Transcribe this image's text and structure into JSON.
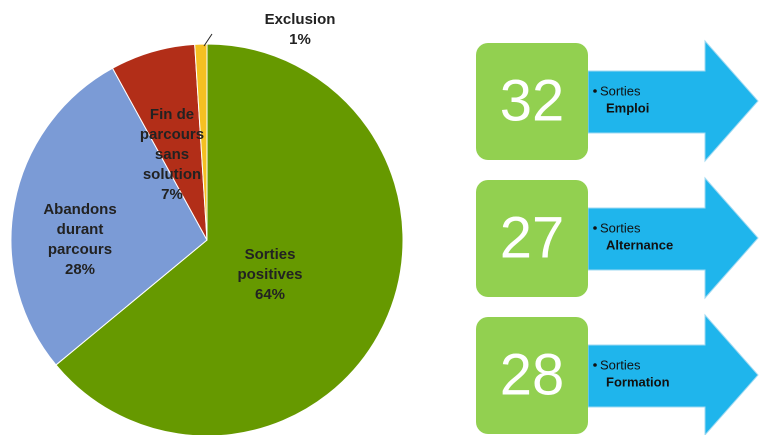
{
  "chart_data": {
    "type": "pie",
    "categories": [
      "Sorties positives",
      "Abandons durant parcours",
      "Fin de parcours sans solution",
      "Exclusion"
    ],
    "values": [
      64,
      28,
      7,
      1
    ],
    "value_labels": [
      "64%",
      "28%",
      "7%",
      "1%"
    ],
    "colors": [
      "#669900",
      "#7b9bd6",
      "#b22e18",
      "#f5c022"
    ]
  },
  "counters": [
    {
      "value": 32,
      "label": "Sorties",
      "detail": "Emploi"
    },
    {
      "value": 27,
      "label": "Sorties",
      "detail": "Alternance"
    },
    {
      "value": 28,
      "label": "Sorties",
      "detail": "Formation"
    }
  ]
}
